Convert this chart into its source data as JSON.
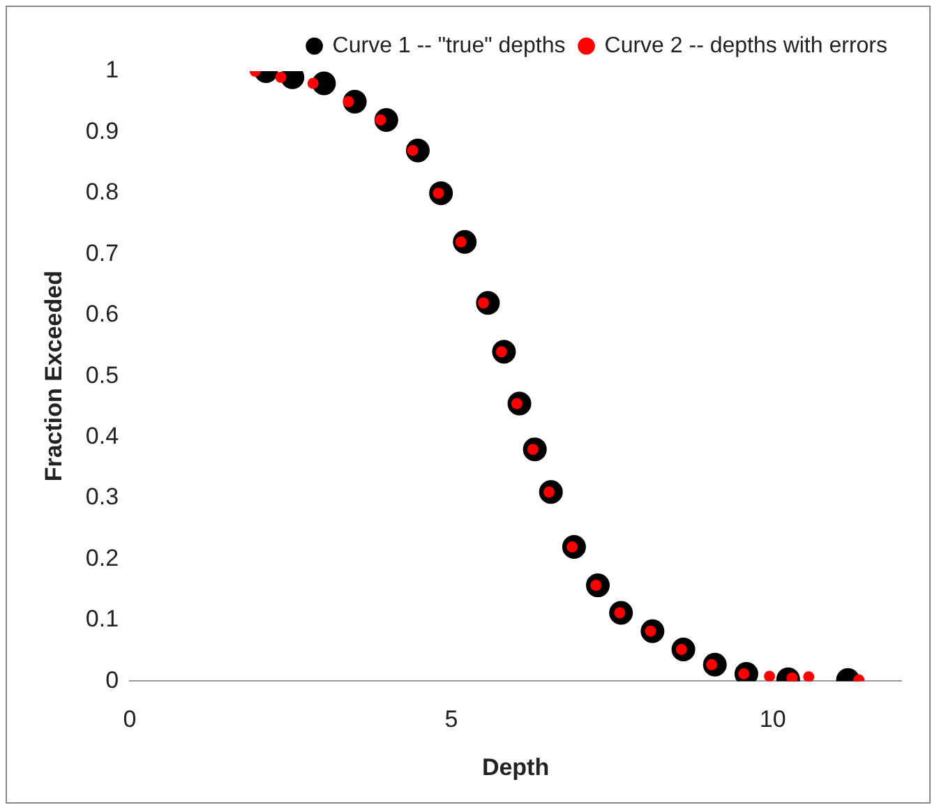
{
  "chart_data": {
    "type": "scatter",
    "xlabel": "Depth",
    "ylabel": "Fraction Exceeded",
    "xlim": [
      0,
      12
    ],
    "xticks": [
      0,
      5,
      10
    ],
    "ylim": [
      0,
      1
    ],
    "yticks": [
      0,
      0.1,
      0.2,
      0.3,
      0.4,
      0.5,
      0.6,
      0.7,
      0.8,
      0.9,
      1
    ],
    "grid": false,
    "legend": "top right",
    "marker": "circle",
    "series": [
      {
        "name": "Curve 1 -- \"true\" depths",
        "color": "#000000",
        "x": [
          2.12,
          2.53,
          3.02,
          3.5,
          3.99,
          4.48,
          4.84,
          5.21,
          5.57,
          5.82,
          6.06,
          6.3,
          6.55,
          6.91,
          7.28,
          7.64,
          8.13,
          8.61,
          9.1,
          9.59,
          10.24,
          11.17
        ],
        "values": [
          1.0,
          0.99,
          0.98,
          0.95,
          0.92,
          0.87,
          0.8,
          0.72,
          0.62,
          0.54,
          0.455,
          0.38,
          0.31,
          0.22,
          0.157,
          0.112,
          0.082,
          0.052,
          0.027,
          0.012,
          0.003,
          0.002
        ]
      },
      {
        "name": "Curve 2 -- depths with errors",
        "color": "#ff0000",
        "x": [
          1.95,
          2.35,
          2.85,
          3.4,
          3.9,
          4.4,
          4.8,
          5.15,
          5.5,
          5.78,
          6.02,
          6.27,
          6.52,
          6.88,
          7.25,
          7.62,
          8.1,
          8.58,
          9.05,
          9.55,
          9.95,
          10.3,
          10.56,
          11.34
        ],
        "values": [
          1.0,
          0.99,
          0.98,
          0.95,
          0.92,
          0.87,
          0.8,
          0.72,
          0.62,
          0.54,
          0.455,
          0.38,
          0.31,
          0.22,
          0.157,
          0.112,
          0.082,
          0.052,
          0.027,
          0.012,
          0.008,
          0.005,
          0.007,
          0.002
        ]
      }
    ]
  }
}
